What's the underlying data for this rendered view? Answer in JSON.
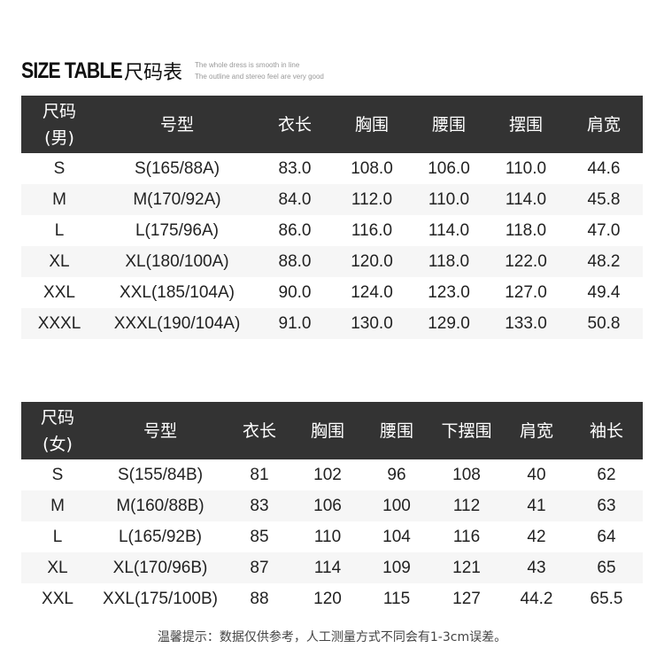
{
  "title": {
    "main": "SIZE TABLE",
    "cn": "尺码表",
    "sub1": "The whole dress is smooth in line",
    "sub2": "The outline and stereo feel are very good"
  },
  "men": {
    "headers": [
      "尺码\n(男)",
      "号型",
      "衣长",
      "胸围",
      "腰围",
      "摆围",
      "肩宽"
    ],
    "rows": [
      [
        "S",
        "S(165/88A)",
        "83.0",
        "108.0",
        "106.0",
        "110.0",
        "44.6"
      ],
      [
        "M",
        "M(170/92A)",
        "84.0",
        "112.0",
        "110.0",
        "114.0",
        "45.8"
      ],
      [
        "L",
        "L(175/96A)",
        "86.0",
        "116.0",
        "114.0",
        "118.0",
        "47.0"
      ],
      [
        "XL",
        "XL(180/100A)",
        "88.0",
        "120.0",
        "118.0",
        "122.0",
        "48.2"
      ],
      [
        "XXL",
        "XXL(185/104A)",
        "90.0",
        "124.0",
        "123.0",
        "127.0",
        "49.4"
      ],
      [
        "XXXL",
        "XXXL(190/104A)",
        "91.0",
        "130.0",
        "129.0",
        "133.0",
        "50.8"
      ]
    ]
  },
  "women": {
    "headers": [
      "尺码\n(女)",
      "号型",
      "衣长",
      "胸围",
      "腰围",
      "下摆围",
      "肩宽",
      "袖长"
    ],
    "rows": [
      [
        "S",
        "S(155/84B)",
        "81",
        "102",
        "96",
        "108",
        "40",
        "62"
      ],
      [
        "M",
        "M(160/88B)",
        "83",
        "106",
        "100",
        "112",
        "41",
        "63"
      ],
      [
        "L",
        "L(165/92B)",
        "85",
        "110",
        "104",
        "116",
        "42",
        "64"
      ],
      [
        "XL",
        "XL(170/96B)",
        "87",
        "114",
        "109",
        "121",
        "43",
        "65"
      ],
      [
        "XXL",
        "XXL(175/100B)",
        "88",
        "120",
        "115",
        "127",
        "44.2",
        "65.5"
      ]
    ]
  },
  "note": "温馨提示：数据仅供参考，人工测量方式不同会有1-3cm误差。"
}
